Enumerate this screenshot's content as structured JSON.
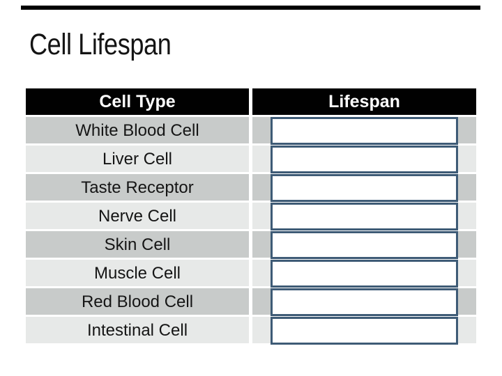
{
  "slide": {
    "title": "Cell Lifespan",
    "background_color": "#ffffff",
    "top_bar_color": "#000000"
  },
  "table": {
    "headers": [
      "Cell Type",
      "Lifespan"
    ],
    "rows": [
      {
        "cell_type": "White Blood Cell",
        "lifespan_value": ""
      },
      {
        "cell_type": "Liver Cell",
        "lifespan_value": ""
      },
      {
        "cell_type": "Taste Receptor",
        "lifespan_value": ""
      },
      {
        "cell_type": "Nerve Cell",
        "lifespan_value": ""
      },
      {
        "cell_type": "Skin Cell",
        "lifespan_value": ""
      },
      {
        "cell_type": "Muscle Cell",
        "lifespan_value": ""
      },
      {
        "cell_type": "Red Blood Cell",
        "lifespan_value": ""
      },
      {
        "cell_type": "Intestinal Cell",
        "lifespan_value": ""
      }
    ],
    "colors": {
      "header_bg": "#010101",
      "header_text": "#ffffff",
      "row_dark": "#c8cbca",
      "row_light": "#e7e9e8",
      "body_text": "#151515",
      "answer_box_border": "#3e5b76",
      "answer_box_fill": "#ffffff"
    }
  }
}
